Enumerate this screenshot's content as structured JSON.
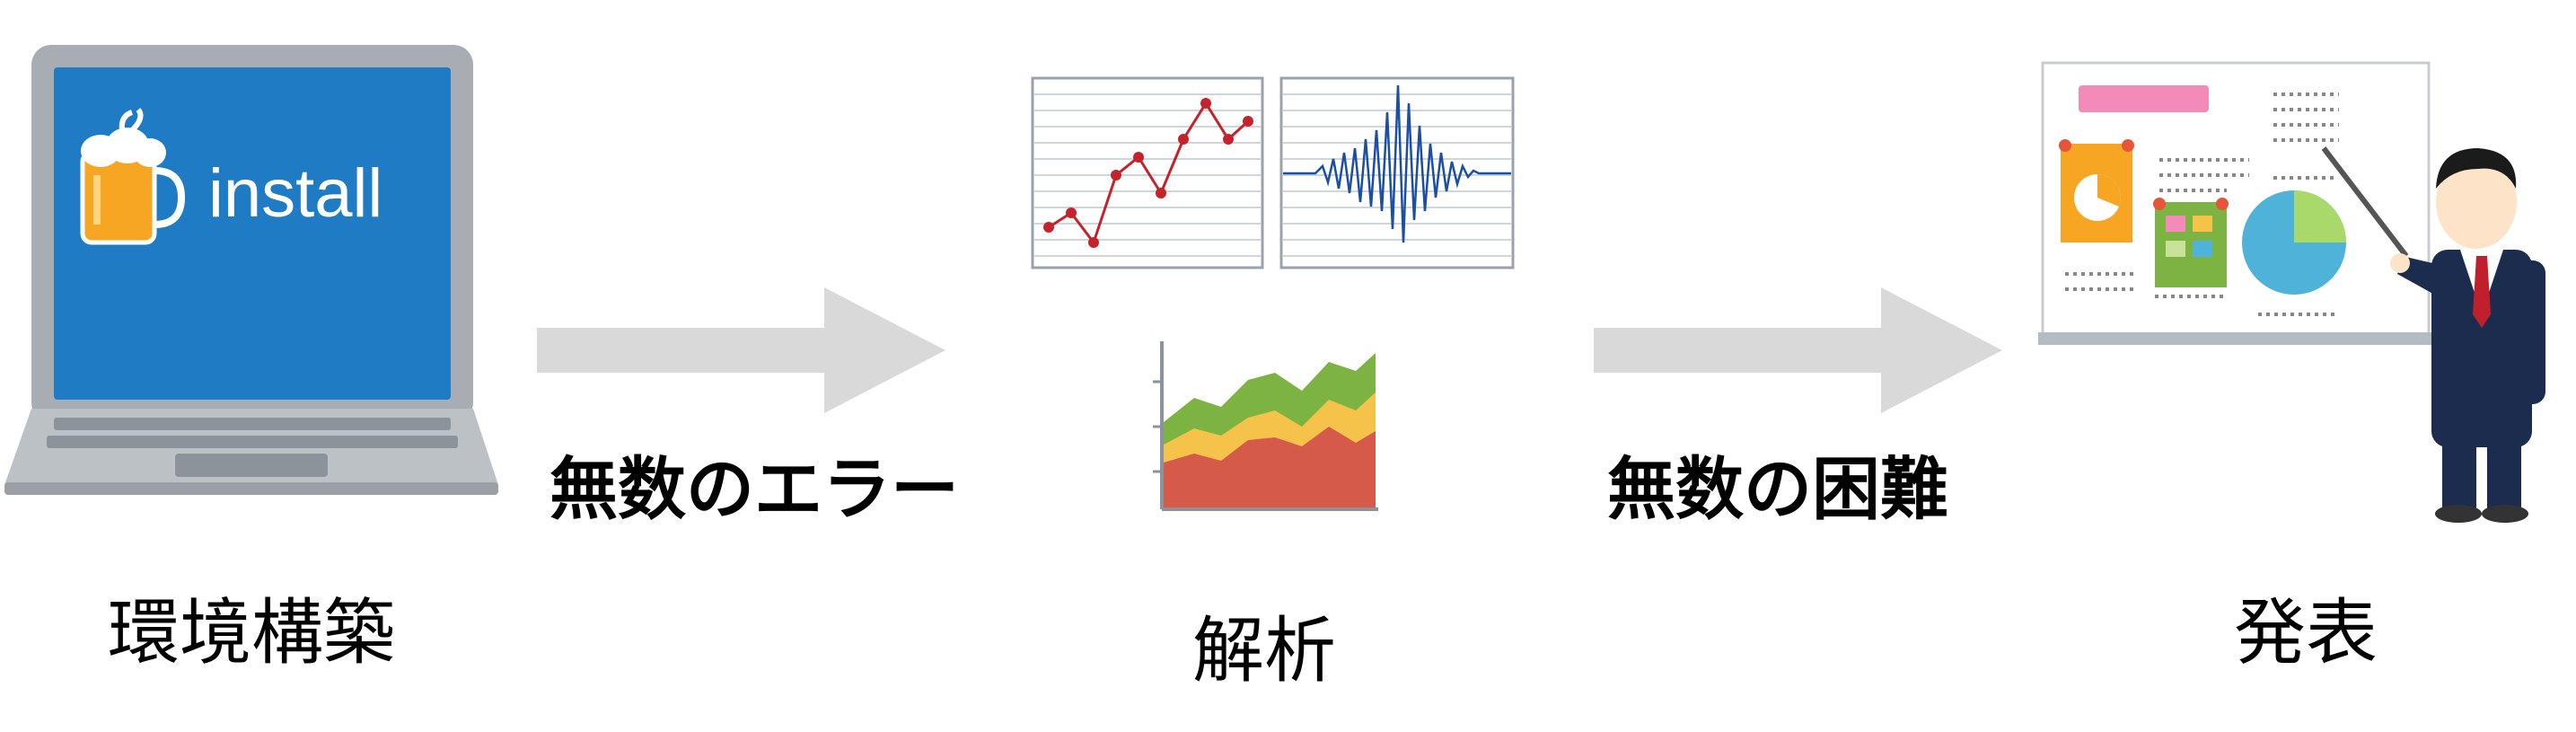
{
  "stages": [
    {
      "label": "環境構築"
    },
    {
      "label": "解析"
    },
    {
      "label": "発表"
    }
  ],
  "laptop": {
    "screen_text": "install"
  },
  "arrows": [
    {
      "label": "無数のエラー"
    },
    {
      "label": "無数の困難"
    }
  ],
  "colors": {
    "laptop_body": "#a7adb3",
    "laptop_screen": "#1f7cc4",
    "arrow": "#d9d9d9",
    "line_chart": "#c4232c",
    "wave_chart": "#1a4fa3",
    "area_red": "#d55a4a",
    "area_yellow": "#f5c24a",
    "area_green": "#7cb342",
    "board_pink": "#f28bb8",
    "suit": "#1b2c4f",
    "tie": "#c0202c"
  }
}
